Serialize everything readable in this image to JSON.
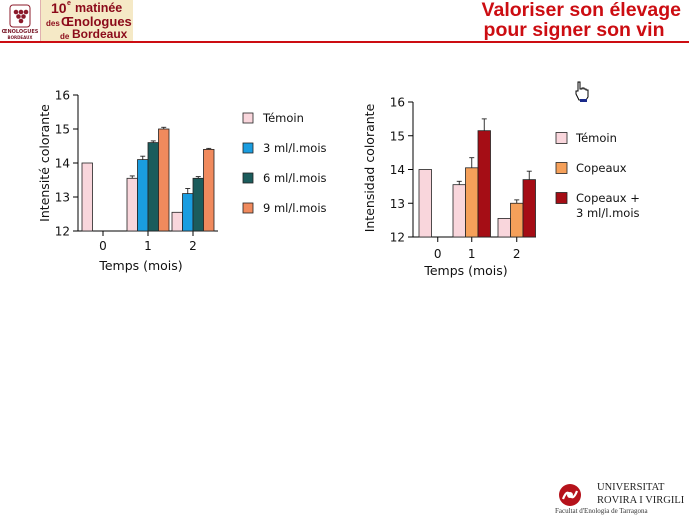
{
  "header": {
    "logo_text": [
      "ŒNOLOGUES",
      "BORDEAUX"
    ],
    "event_number": "10",
    "event_superscript": "e",
    "event_line1": "matinée",
    "event_line2_prefix": "des",
    "event_line2": "Œnologues",
    "event_line3_prefix": "de",
    "event_line3": "Bordeaux",
    "title_line1": "Valoriser son élevage",
    "title_line2": "pour signer son vin"
  },
  "footer": {
    "university_line1": "UNIVERSITAT",
    "university_line2": "ROVIRA I VIRGILI",
    "faculty": "Facultat d'Enologia de Tarragona"
  },
  "colors": {
    "accent": "#cc0d12",
    "event_bg": "#f5e9c6"
  },
  "chart_data": [
    {
      "type": "bar",
      "categories": [
        "0",
        "1",
        "2"
      ],
      "xlabel": "Temps (mois)",
      "ylabel": "Intensité colorante",
      "ylim": [
        12,
        16
      ],
      "yticks": [
        12,
        13,
        14,
        15,
        16
      ],
      "legend_position": "right",
      "series": [
        {
          "name": "Témoin",
          "color": "#f9d6dc",
          "values": [
            14.0,
            13.55,
            12.55
          ],
          "errors": [
            0,
            0.07,
            0
          ]
        },
        {
          "name": "3 ml/l.mois",
          "color": "#1a9de0",
          "values": [
            null,
            14.1,
            13.1
          ],
          "errors": [
            0,
            0.1,
            0.15
          ]
        },
        {
          "name": "6 ml/l.mois",
          "color": "#1b5c5c",
          "values": [
            null,
            14.6,
            13.55
          ],
          "errors": [
            0,
            0.05,
            0.05
          ]
        },
        {
          "name": "9 ml/l.mois",
          "color": "#f08a5d",
          "values": [
            null,
            15.0,
            14.4
          ],
          "errors": [
            0,
            0.05,
            0.03
          ]
        }
      ]
    },
    {
      "type": "bar",
      "categories": [
        "0",
        "1",
        "2"
      ],
      "xlabel": "Temps (mois)",
      "ylabel": "Intensidad colorante",
      "ylim": [
        12,
        16
      ],
      "yticks": [
        12,
        13,
        14,
        15,
        16
      ],
      "legend_position": "right",
      "series": [
        {
          "name": "Témoin",
          "color": "#f9d6dc",
          "values": [
            14.0,
            13.55,
            12.55
          ],
          "errors": [
            0,
            0.1,
            0
          ]
        },
        {
          "name": "Copeaux",
          "color": "#f5a05a",
          "values": [
            null,
            14.05,
            13.0
          ],
          "errors": [
            0,
            0.3,
            0.1
          ]
        },
        {
          "name": [
            "Copeaux +",
            "3 ml/l.mois"
          ],
          "color": "#a50d15",
          "values": [
            null,
            15.15,
            13.7
          ],
          "errors": [
            0,
            0.35,
            0.25
          ]
        }
      ]
    }
  ]
}
